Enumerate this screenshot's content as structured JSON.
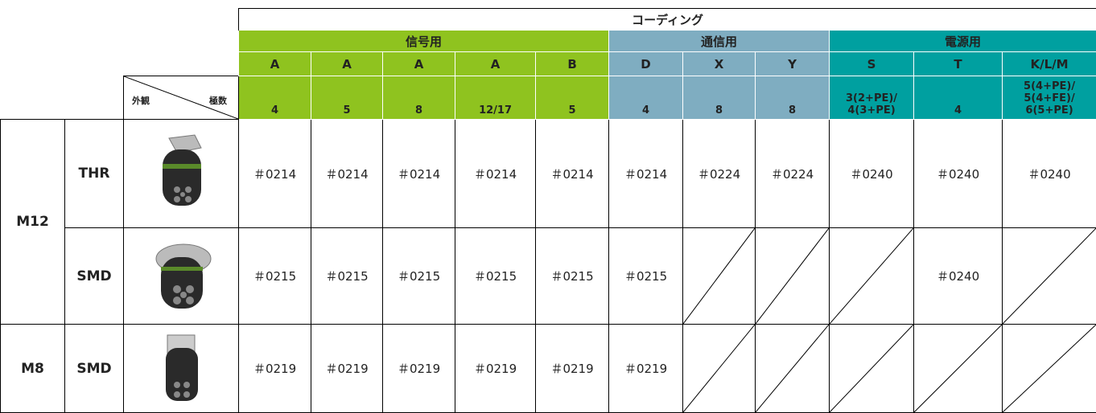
{
  "header": {
    "title": "コーディング",
    "corner": {
      "left": "外観",
      "right": "極数"
    },
    "groups": [
      {
        "label": "信号用",
        "color": "#8fc31f",
        "codings": [
          "A",
          "A",
          "A",
          "A",
          "B"
        ],
        "poles": [
          "4",
          "5",
          "8",
          "12/17",
          "5"
        ]
      },
      {
        "label": "通信用",
        "color": "#7fadc1",
        "codings": [
          "D",
          "X",
          "Y"
        ],
        "poles": [
          "4",
          "8",
          "8"
        ]
      },
      {
        "label": "電源用",
        "color": "#00a0a0",
        "codings": [
          "S",
          "T",
          "K/L/M"
        ],
        "poles": [
          "3(2+PE)/\n4(3+PE)",
          "4",
          "5(4+PE)/\n5(4+FE)/\n6(5+PE)"
        ]
      }
    ]
  },
  "rows": [
    {
      "size": "M12",
      "variants": [
        {
          "mount": "THR",
          "cells": [
            "＃0214",
            "＃0214",
            "＃0214",
            "＃0214",
            "＃0214",
            "＃0214",
            "＃0224",
            "＃0224",
            "＃0240",
            "＃0240",
            "＃0240"
          ]
        },
        {
          "mount": "SMD",
          "cells": [
            "＃0215",
            "＃0215",
            "＃0215",
            "＃0215",
            "＃0215",
            "＃0215",
            null,
            null,
            null,
            "＃0240",
            null
          ]
        }
      ]
    },
    {
      "size": "M8",
      "variants": [
        {
          "mount": "SMD",
          "cells": [
            "＃0219",
            "＃0219",
            "＃0219",
            "＃0219",
            "＃0219",
            "＃0219",
            null,
            null,
            null,
            null,
            null
          ]
        }
      ]
    }
  ]
}
